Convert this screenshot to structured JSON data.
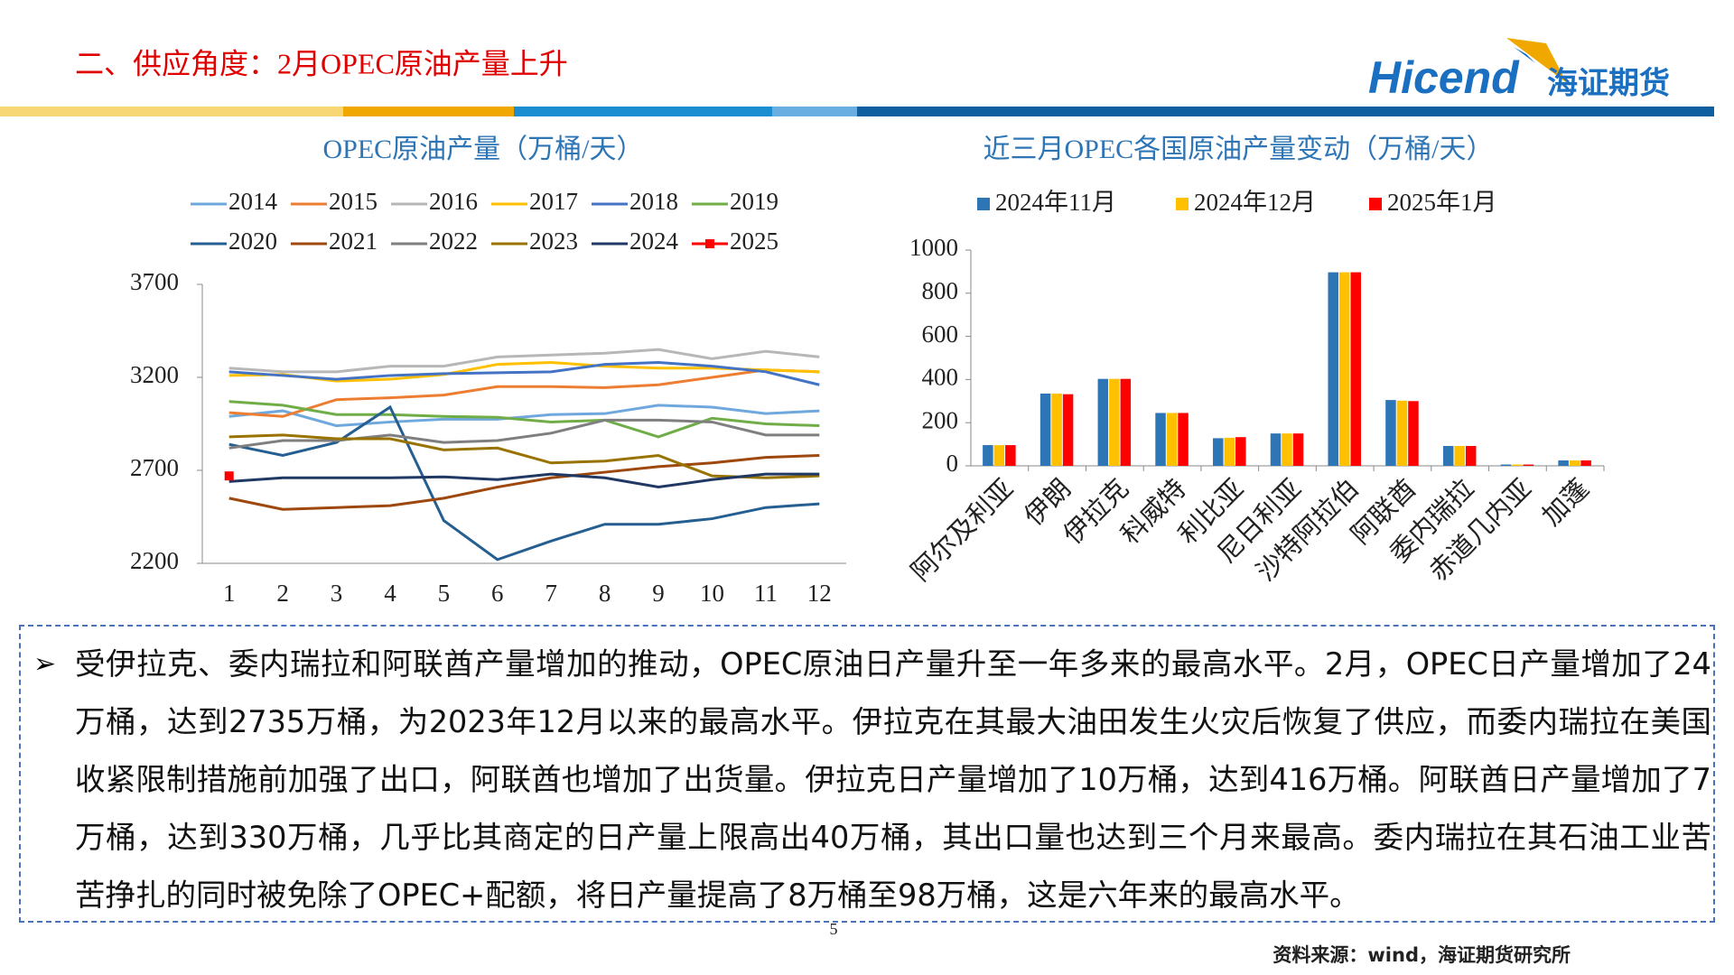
{
  "header": {
    "title": "二、供应角度：2月OPEC原油产量上升",
    "logo_en": "Hicend",
    "logo_cn": "海证期货"
  },
  "chart_data": [
    {
      "type": "line",
      "title": "OPEC原油产量（万桶/天）",
      "x": [
        1,
        2,
        3,
        4,
        5,
        6,
        7,
        8,
        9,
        10,
        11,
        12
      ],
      "xlim": [
        0.5,
        12.5
      ],
      "xticks": [
        1,
        2,
        3,
        4,
        5,
        6,
        7,
        8,
        9,
        10,
        11,
        12
      ],
      "ylim": [
        2200,
        3700
      ],
      "yticks": [
        2200,
        2700,
        3200,
        3700
      ],
      "series": [
        {
          "name": "2014",
          "color": "#6fa8dc",
          "values": [
            2990,
            3020,
            2940,
            2960,
            2975,
            2975,
            3000,
            3005,
            3050,
            3040,
            3005,
            3020
          ]
        },
        {
          "name": "2015",
          "color": "#ed7d31",
          "values": [
            3010,
            2990,
            3080,
            3090,
            3105,
            3150,
            3150,
            3145,
            3160,
            3200,
            3240,
            3230
          ]
        },
        {
          "name": "2016",
          "color": "#b7b7b7",
          "values": [
            3250,
            3230,
            3230,
            3260,
            3260,
            3310,
            3320,
            3330,
            3350,
            3300,
            3340,
            3310
          ]
        },
        {
          "name": "2017",
          "color": "#ffc000",
          "values": [
            3210,
            3215,
            3180,
            3190,
            3215,
            3270,
            3280,
            3260,
            3250,
            3250,
            3240,
            3230
          ]
        },
        {
          "name": "2018",
          "color": "#4472c4",
          "values": [
            3230,
            3210,
            3190,
            3210,
            3220,
            3225,
            3230,
            3270,
            3280,
            3260,
            3230,
            3160
          ]
        },
        {
          "name": "2019",
          "color": "#70ad47",
          "values": [
            3070,
            3050,
            3000,
            3000,
            2990,
            2985,
            2960,
            2970,
            2880,
            2980,
            2950,
            2940
          ]
        },
        {
          "name": "2020",
          "color": "#255e91",
          "values": [
            2840,
            2780,
            2850,
            3040,
            2430,
            2220,
            2320,
            2410,
            2410,
            2440,
            2500,
            2520
          ]
        },
        {
          "name": "2021",
          "color": "#9e480e",
          "values": [
            2550,
            2490,
            2500,
            2510,
            2550,
            2610,
            2660,
            2690,
            2720,
            2740,
            2770,
            2780
          ]
        },
        {
          "name": "2022",
          "color": "#7f7f7f",
          "values": [
            2820,
            2860,
            2860,
            2890,
            2850,
            2860,
            2900,
            2970,
            2970,
            2960,
            2890,
            2890
          ]
        },
        {
          "name": "2023",
          "color": "#997300",
          "values": [
            2880,
            2890,
            2870,
            2870,
            2810,
            2820,
            2740,
            2750,
            2780,
            2670,
            2660,
            2670
          ]
        },
        {
          "name": "2024",
          "color": "#203864",
          "values": [
            2640,
            2660,
            2660,
            2660,
            2665,
            2650,
            2680,
            2660,
            2610,
            2650,
            2680,
            2680
          ]
        },
        {
          "name": "2025",
          "color": "#ff0000",
          "marker": "square",
          "values": [
            2670,
            null,
            null,
            null,
            null,
            null,
            null,
            null,
            null,
            null,
            null,
            null
          ]
        }
      ]
    },
    {
      "type": "bar",
      "title": "近三月OPEC各国原油产量变动（万桶/天）",
      "categories": [
        "阿尔及利亚",
        "伊朗",
        "伊拉克",
        "科威特",
        "利比亚",
        "尼日利亚",
        "沙特阿拉伯",
        "阿联酋",
        "委内瑞拉",
        "赤道几内亚",
        "加蓬"
      ],
      "ylim": [
        0,
        1000
      ],
      "yticks": [
        0,
        200,
        400,
        600,
        800,
        1000
      ],
      "series": [
        {
          "name": "2024年11月",
          "color": "#2e75b6",
          "values": [
            96,
            335,
            403,
            245,
            128,
            150,
            897,
            305,
            92,
            6,
            25
          ]
        },
        {
          "name": "2024年12月",
          "color": "#ffc000",
          "values": [
            96,
            335,
            403,
            245,
            130,
            150,
            897,
            302,
            92,
            6,
            25
          ]
        },
        {
          "name": "2025年1月",
          "color": "#ff0000",
          "values": [
            96,
            332,
            403,
            245,
            133,
            150,
            897,
            300,
            92,
            6,
            25
          ]
        }
      ]
    }
  ],
  "text": {
    "bullet": "➢",
    "paragraph": "受伊拉克、委内瑞拉和阿联酋产量增加的推动，OPEC原油日产量升至一年多来的最高水平。2月，OPEC日产量增加了24万桶，达到2735万桶，为2023年12月以来的最高水平。伊拉克在其最大油田发生火灾后恢复了供应，而委内瑞拉在美国收紧限制措施前加强了出口，阿联酋也增加了出货量。伊拉克日产量增加了10万桶，达到416万桶。阿联酋日产量增加了7万桶，达到330万桶，几乎比其商定的日产量上限高出40万桶，其出口量也达到三个月来最高。委内瑞拉在其石油工业苦苦挣扎的同时被免除了OPEC+配额，将日产量提高了8万桶至98万桶，这是六年来的最高水平。"
  },
  "footer": {
    "page": "5",
    "source": "资料来源：wind，海证期货研究所"
  }
}
